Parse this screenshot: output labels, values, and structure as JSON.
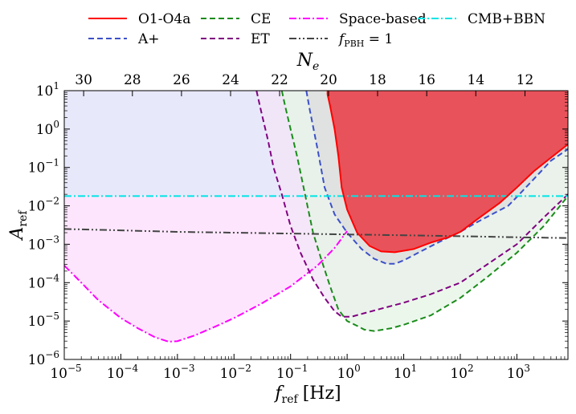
{
  "chart_data": {
    "type": "line",
    "title": "",
    "xlabel": "f",
    "xlabel_sub": "ref",
    "xlabel_unit": "[Hz]",
    "ylabel": "A",
    "ylabel_sub": "ref",
    "top_xlabel": "N",
    "top_xlabel_sub": "e",
    "xscale": "log",
    "yscale": "log",
    "xlim": [
      1e-05,
      8000
    ],
    "ylim": [
      1e-06,
      10
    ],
    "x_ticks": [
      {
        "value": 1e-05,
        "base": "10",
        "exp": "−5"
      },
      {
        "value": 0.0001,
        "base": "10",
        "exp": "−4"
      },
      {
        "value": 0.001,
        "base": "10",
        "exp": "−3"
      },
      {
        "value": 0.01,
        "base": "10",
        "exp": "−2"
      },
      {
        "value": 0.1,
        "base": "10",
        "exp": "−1"
      },
      {
        "value": 1,
        "base": "10",
        "exp": "0"
      },
      {
        "value": 10,
        "base": "10",
        "exp": "1"
      },
      {
        "value": 100,
        "base": "10",
        "exp": "2"
      },
      {
        "value": 1000,
        "base": "10",
        "exp": "3"
      }
    ],
    "y_ticks": [
      {
        "value": 1e-06,
        "base": "10",
        "exp": "−6"
      },
      {
        "value": 1e-05,
        "base": "10",
        "exp": "−5"
      },
      {
        "value": 0.0001,
        "base": "10",
        "exp": "−4"
      },
      {
        "value": 0.001,
        "base": "10",
        "exp": "−3"
      },
      {
        "value": 0.01,
        "base": "10",
        "exp": "−2"
      },
      {
        "value": 0.1,
        "base": "10",
        "exp": "−1"
      },
      {
        "value": 1,
        "base": "10",
        "exp": "0"
      },
      {
        "value": 10,
        "base": "10",
        "exp": "1"
      }
    ],
    "top_ticks": [
      {
        "label": "30",
        "f": 2.2e-05
      },
      {
        "label": "28",
        "f": 0.00016
      },
      {
        "label": "26",
        "f": 0.00118
      },
      {
        "label": "24",
        "f": 0.0087
      },
      {
        "label": "22",
        "f": 0.064
      },
      {
        "label": "20",
        "f": 0.47
      },
      {
        "label": "18",
        "f": 3.45
      },
      {
        "label": "16",
        "f": 25.5
      },
      {
        "label": "14",
        "f": 188
      },
      {
        "label": "12",
        "f": 1390
      }
    ],
    "legend_placement": "top",
    "grid": false,
    "series": [
      {
        "name": "O1-O4a",
        "style": "solid",
        "color": "#ff0000",
        "fill": "#e8525a",
        "points": [
          [
            0.45,
            10
          ],
          [
            0.45,
            8
          ],
          [
            0.5,
            4
          ],
          [
            0.6,
            1
          ],
          [
            0.7,
            0.2
          ],
          [
            0.8,
            0.03
          ],
          [
            1.0,
            0.008
          ],
          [
            1.5,
            0.002
          ],
          [
            2.5,
            0.0009
          ],
          [
            4,
            0.00065
          ],
          [
            7,
            0.00062
          ],
          [
            15,
            0.00075
          ],
          [
            30,
            0.0011
          ],
          [
            60,
            0.0015
          ],
          [
            100,
            0.0021
          ],
          [
            200,
            0.0045
          ],
          [
            500,
            0.012
          ],
          [
            1000,
            0.03
          ],
          [
            2000,
            0.08
          ],
          [
            4000,
            0.18
          ],
          [
            8000,
            0.4
          ]
        ]
      },
      {
        "name": "A+",
        "style": "dashed",
        "color": "#3c50c8",
        "fill": "#dcdcdc",
        "points": [
          [
            0.19,
            10
          ],
          [
            0.22,
            3
          ],
          [
            0.3,
            0.3
          ],
          [
            0.4,
            0.03
          ],
          [
            0.6,
            0.006
          ],
          [
            1.0,
            0.002
          ],
          [
            1.8,
            0.00075
          ],
          [
            3,
            0.00042
          ],
          [
            5,
            0.00031
          ],
          [
            7,
            0.00031
          ],
          [
            10,
            0.00038
          ],
          [
            20,
            0.00065
          ],
          [
            50,
            0.0013
          ],
          [
            100,
            0.0021
          ],
          [
            200,
            0.0038
          ],
          [
            400,
            0.0065
          ],
          [
            700,
            0.01
          ],
          [
            1000,
            0.017
          ],
          [
            2000,
            0.05
          ],
          [
            4000,
            0.15
          ],
          [
            8000,
            0.3
          ]
        ]
      },
      {
        "name": "CE",
        "style": "dashed",
        "color": "#1a8c1a",
        "fill": "#e6f4e6",
        "points": [
          [
            0.07,
            10
          ],
          [
            0.08,
            4
          ],
          [
            0.1,
            1
          ],
          [
            0.13,
            0.2
          ],
          [
            0.18,
            0.02
          ],
          [
            0.25,
            0.002
          ],
          [
            0.35,
            0.0004
          ],
          [
            0.5,
            8e-05
          ],
          [
            0.7,
            2e-05
          ],
          [
            1.0,
            1e-05
          ],
          [
            1.5,
            7.5e-06
          ],
          [
            2,
            6e-06
          ],
          [
            3,
            5.5e-06
          ],
          [
            6,
            6.5e-06
          ],
          [
            10,
            8e-06
          ],
          [
            30,
            1.4e-05
          ],
          [
            100,
            4e-05
          ],
          [
            300,
            0.00014
          ],
          [
            1000,
            0.0006
          ],
          [
            3000,
            0.003
          ],
          [
            8000,
            0.018
          ]
        ]
      },
      {
        "name": "ET",
        "style": "dashed",
        "color": "#800080",
        "fill": "#f3e6f7",
        "points": [
          [
            0.025,
            10
          ],
          [
            0.03,
            3
          ],
          [
            0.04,
            0.5
          ],
          [
            0.05,
            0.1
          ],
          [
            0.07,
            0.02
          ],
          [
            0.1,
            0.003
          ],
          [
            0.15,
            0.0006
          ],
          [
            0.25,
            0.00012
          ],
          [
            0.4,
            4e-05
          ],
          [
            0.6,
            1.8e-05
          ],
          [
            0.8,
            1.3e-05
          ],
          [
            1.2,
            1.3e-05
          ],
          [
            2,
            1.6e-05
          ],
          [
            4,
            2.1e-05
          ],
          [
            10,
            3e-05
          ],
          [
            30,
            5e-05
          ],
          [
            100,
            0.0001
          ],
          [
            300,
            0.0003
          ],
          [
            1000,
            0.001
          ],
          [
            3000,
            0.005
          ],
          [
            8000,
            0.02
          ]
        ]
      },
      {
        "name": "Space-based",
        "style": "dashdot",
        "color": "#ff00ff",
        "fill": "#fde6fd",
        "points": [
          [
            1e-05,
            0.00028
          ],
          [
            2e-05,
            0.0001
          ],
          [
            4e-05,
            3.5e-05
          ],
          [
            0.0001,
            1.2e-05
          ],
          [
            0.0002,
            6.5e-06
          ],
          [
            0.0004,
            3.8e-06
          ],
          [
            0.0007,
            2.9e-06
          ],
          [
            0.001,
            3e-06
          ],
          [
            0.002,
            4.2e-06
          ],
          [
            0.005,
            7.5e-06
          ],
          [
            0.01,
            1.2e-05
          ],
          [
            0.03,
            2.8e-05
          ],
          [
            0.1,
            8e-05
          ],
          [
            0.3,
            0.00028
          ],
          [
            0.6,
            0.0008
          ],
          [
            1.0,
            0.0022
          ]
        ]
      },
      {
        "name": "f_PBH = 1",
        "style": "dashdotdot",
        "color": "#444444",
        "points": [
          [
            1e-05,
            0.0025
          ],
          [
            0.0001,
            0.0023
          ],
          [
            0.001,
            0.0021
          ],
          [
            0.01,
            0.002
          ],
          [
            0.1,
            0.0019
          ],
          [
            1,
            0.0018
          ],
          [
            10,
            0.00172
          ],
          [
            100,
            0.00162
          ],
          [
            1000,
            0.00152
          ],
          [
            8000,
            0.00145
          ]
        ]
      },
      {
        "name": "CMB+BBN",
        "style": "dashdot",
        "color": "#00e5e5",
        "points": [
          [
            1e-05,
            0.018
          ],
          [
            8000,
            0.018
          ]
        ]
      }
    ],
    "legend": [
      {
        "label": "O1-O4a",
        "style": "solid",
        "color": "#ff0000"
      },
      {
        "label": "CE",
        "style": "dashed",
        "color": "#1a8c1a"
      },
      {
        "label": "Space-based",
        "style": "dashdot",
        "color": "#ff00ff"
      },
      {
        "label": "CMB+BBN",
        "style": "dashdot",
        "color": "#00e5e5"
      },
      {
        "label": "A+",
        "style": "dashed",
        "color": "#3c50c8"
      },
      {
        "label": "ET",
        "style": "dashed",
        "color": "#800080"
      },
      {
        "label_main": "f",
        "label_sub": "PBH",
        "label_rest": " = 1",
        "style": "dashdotdot",
        "color": "#444444"
      }
    ],
    "background_regions": [
      {
        "name": "space-upper",
        "color": "#e8e8fb"
      },
      {
        "name": "space-lower",
        "color": "#fde6fd"
      }
    ]
  }
}
